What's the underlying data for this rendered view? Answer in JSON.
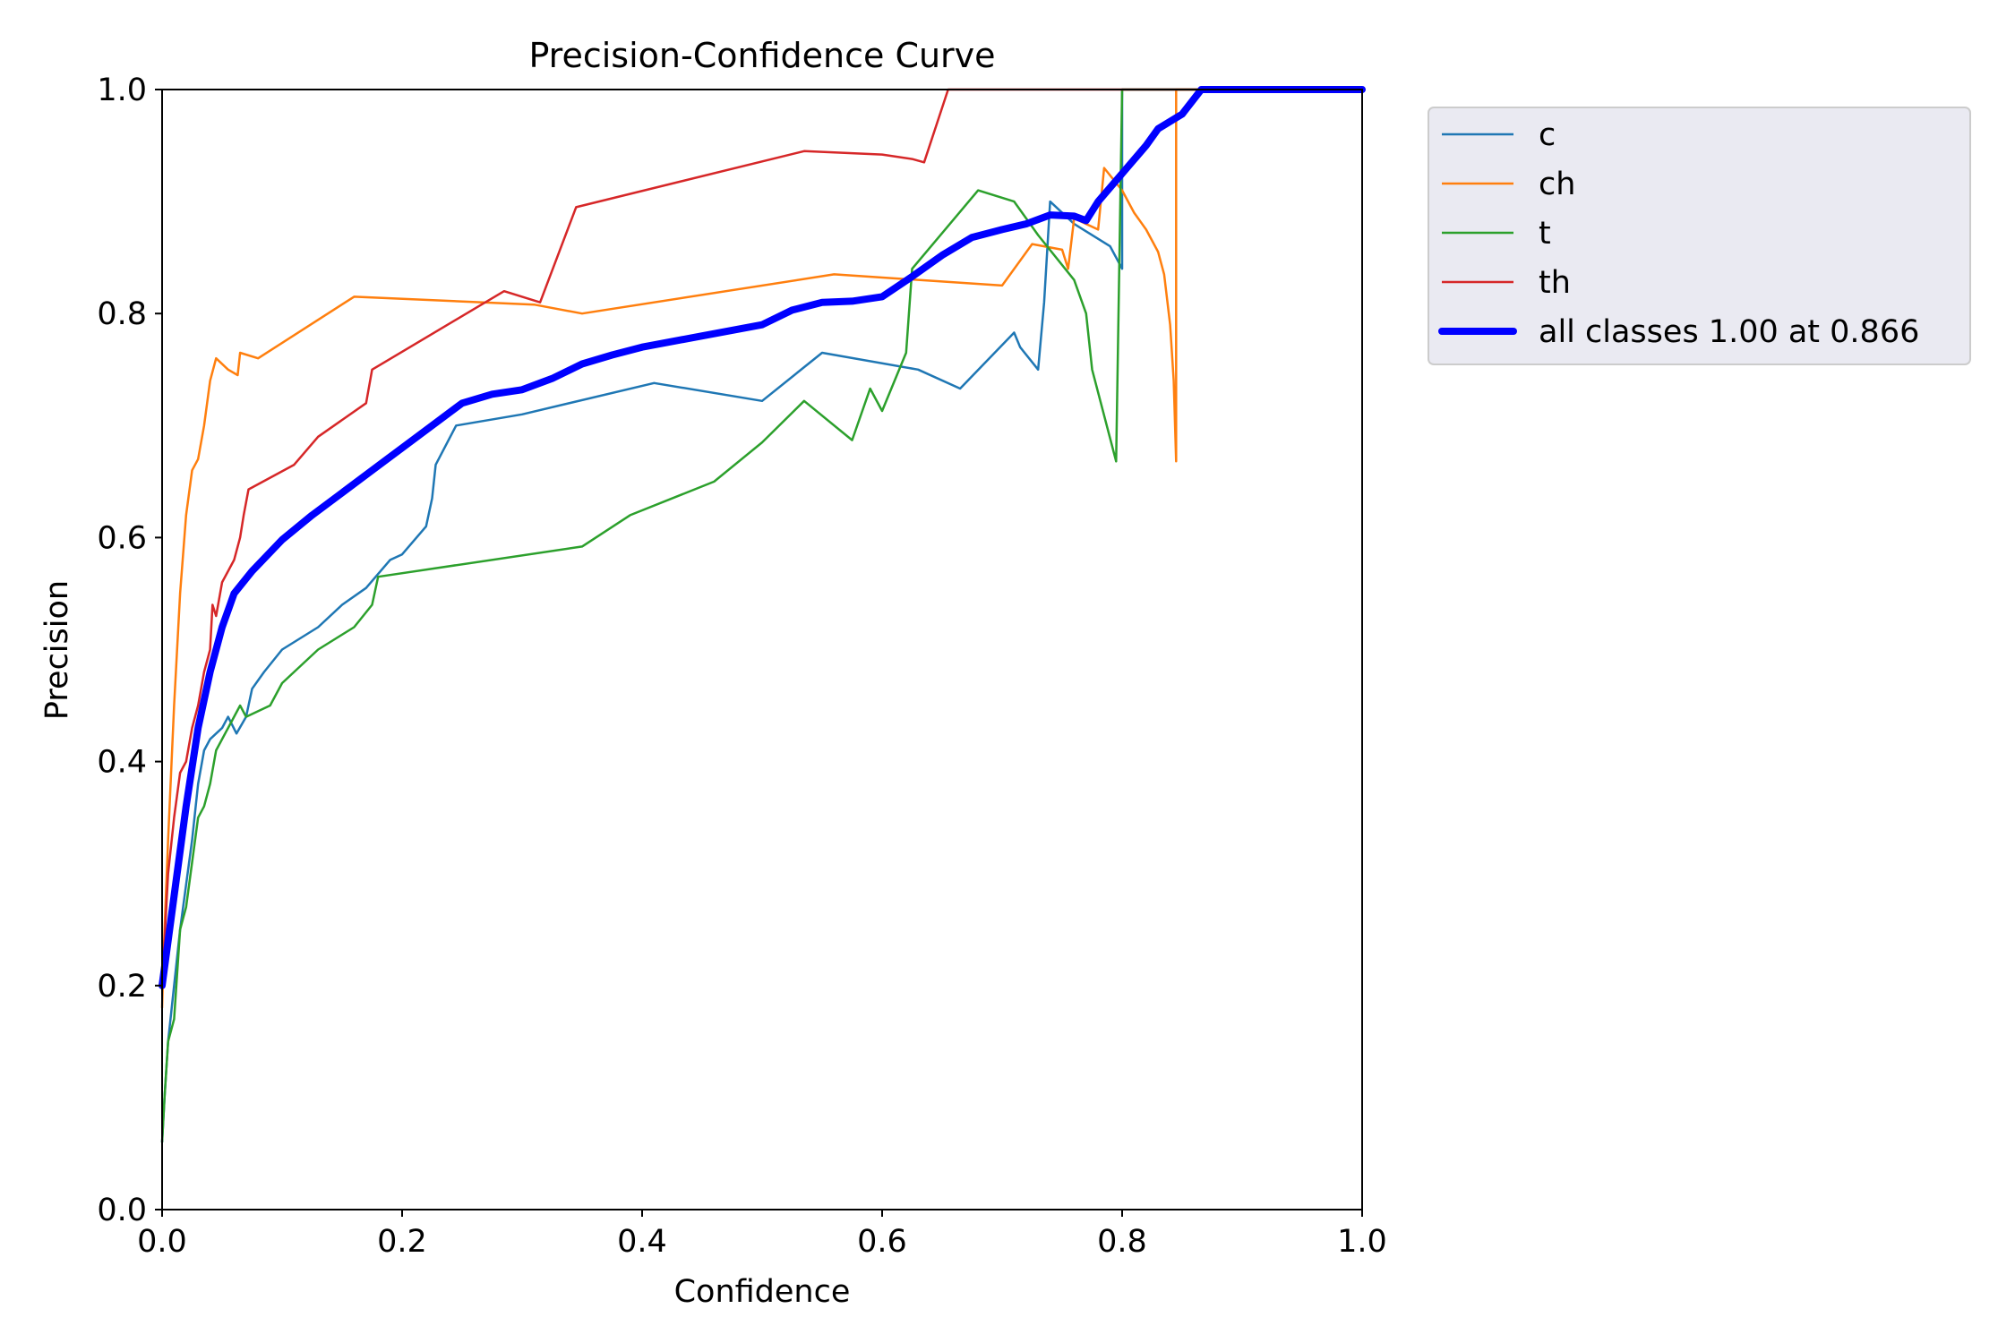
{
  "chart_data": {
    "type": "line",
    "title": "Precision-Confidence Curve",
    "xlabel": "Confidence",
    "ylabel": "Precision",
    "xlim": [
      0,
      1
    ],
    "ylim": [
      0,
      1
    ],
    "x_ticks": [
      "0.0",
      "0.2",
      "0.4",
      "0.6",
      "0.8",
      "1.0"
    ],
    "y_ticks": [
      "0.0",
      "0.2",
      "0.4",
      "0.6",
      "0.8",
      "1.0"
    ],
    "grid": false,
    "legend_position": "outside-top-right",
    "series": [
      {
        "name": "c",
        "color": "#1f77b4",
        "width": "thin",
        "points": [
          [
            0.0,
            0.06
          ],
          [
            0.002,
            0.1
          ],
          [
            0.005,
            0.15
          ],
          [
            0.01,
            0.2
          ],
          [
            0.015,
            0.25
          ],
          [
            0.02,
            0.29
          ],
          [
            0.025,
            0.33
          ],
          [
            0.03,
            0.38
          ],
          [
            0.035,
            0.41
          ],
          [
            0.04,
            0.42
          ],
          [
            0.05,
            0.43
          ],
          [
            0.055,
            0.44
          ],
          [
            0.062,
            0.425
          ],
          [
            0.07,
            0.44
          ],
          [
            0.075,
            0.465
          ],
          [
            0.085,
            0.48
          ],
          [
            0.1,
            0.5
          ],
          [
            0.13,
            0.52
          ],
          [
            0.15,
            0.54
          ],
          [
            0.17,
            0.555
          ],
          [
            0.19,
            0.58
          ],
          [
            0.2,
            0.585
          ],
          [
            0.22,
            0.61
          ],
          [
            0.225,
            0.635
          ],
          [
            0.228,
            0.665
          ],
          [
            0.245,
            0.7
          ],
          [
            0.3,
            0.71
          ],
          [
            0.41,
            0.738
          ],
          [
            0.5,
            0.722
          ],
          [
            0.55,
            0.765
          ],
          [
            0.63,
            0.75
          ],
          [
            0.665,
            0.733
          ],
          [
            0.71,
            0.783
          ],
          [
            0.715,
            0.77
          ],
          [
            0.73,
            0.75
          ],
          [
            0.735,
            0.81
          ],
          [
            0.74,
            0.9
          ],
          [
            0.76,
            0.88
          ],
          [
            0.79,
            0.86
          ],
          [
            0.8,
            0.84
          ],
          [
            0.8,
            1.0
          ],
          [
            1.0,
            1.0
          ]
        ]
      },
      {
        "name": "ch",
        "color": "#ff7f0e",
        "width": "thin",
        "points": [
          [
            0.0,
            0.18
          ],
          [
            0.002,
            0.25
          ],
          [
            0.005,
            0.33
          ],
          [
            0.01,
            0.45
          ],
          [
            0.015,
            0.55
          ],
          [
            0.02,
            0.62
          ],
          [
            0.025,
            0.66
          ],
          [
            0.03,
            0.67
          ],
          [
            0.035,
            0.7
          ],
          [
            0.04,
            0.74
          ],
          [
            0.045,
            0.76
          ],
          [
            0.055,
            0.75
          ],
          [
            0.063,
            0.745
          ],
          [
            0.065,
            0.765
          ],
          [
            0.08,
            0.76
          ],
          [
            0.16,
            0.815
          ],
          [
            0.31,
            0.808
          ],
          [
            0.35,
            0.8
          ],
          [
            0.56,
            0.835
          ],
          [
            0.7,
            0.825
          ],
          [
            0.725,
            0.862
          ],
          [
            0.75,
            0.857
          ],
          [
            0.755,
            0.84
          ],
          [
            0.76,
            0.885
          ],
          [
            0.78,
            0.875
          ],
          [
            0.785,
            0.93
          ],
          [
            0.8,
            0.91
          ],
          [
            0.81,
            0.89
          ],
          [
            0.82,
            0.875
          ],
          [
            0.83,
            0.855
          ],
          [
            0.835,
            0.835
          ],
          [
            0.84,
            0.79
          ],
          [
            0.843,
            0.74
          ],
          [
            0.845,
            0.668
          ],
          [
            0.845,
            1.0
          ],
          [
            1.0,
            1.0
          ]
        ]
      },
      {
        "name": "t",
        "color": "#2ca02c",
        "width": "thin",
        "points": [
          [
            0.0,
            0.06
          ],
          [
            0.002,
            0.1
          ],
          [
            0.005,
            0.15
          ],
          [
            0.01,
            0.17
          ],
          [
            0.015,
            0.25
          ],
          [
            0.02,
            0.27
          ],
          [
            0.025,
            0.31
          ],
          [
            0.03,
            0.35
          ],
          [
            0.035,
            0.36
          ],
          [
            0.04,
            0.38
          ],
          [
            0.045,
            0.41
          ],
          [
            0.055,
            0.43
          ],
          [
            0.065,
            0.45
          ],
          [
            0.07,
            0.44
          ],
          [
            0.09,
            0.45
          ],
          [
            0.1,
            0.47
          ],
          [
            0.11,
            0.48
          ],
          [
            0.13,
            0.5
          ],
          [
            0.16,
            0.52
          ],
          [
            0.175,
            0.54
          ],
          [
            0.18,
            0.565
          ],
          [
            0.35,
            0.592
          ],
          [
            0.39,
            0.62
          ],
          [
            0.46,
            0.65
          ],
          [
            0.5,
            0.685
          ],
          [
            0.535,
            0.722
          ],
          [
            0.575,
            0.687
          ],
          [
            0.59,
            0.733
          ],
          [
            0.6,
            0.713
          ],
          [
            0.62,
            0.765
          ],
          [
            0.625,
            0.84
          ],
          [
            0.68,
            0.91
          ],
          [
            0.71,
            0.9
          ],
          [
            0.73,
            0.87
          ],
          [
            0.76,
            0.83
          ],
          [
            0.77,
            0.8
          ],
          [
            0.775,
            0.75
          ],
          [
            0.795,
            0.668
          ],
          [
            0.8,
            1.0
          ],
          [
            1.0,
            1.0
          ]
        ]
      },
      {
        "name": "th",
        "color": "#d62728",
        "width": "thin",
        "points": [
          [
            0.0,
            0.2
          ],
          [
            0.005,
            0.3
          ],
          [
            0.01,
            0.35
          ],
          [
            0.015,
            0.39
          ],
          [
            0.02,
            0.4
          ],
          [
            0.025,
            0.43
          ],
          [
            0.03,
            0.45
          ],
          [
            0.035,
            0.48
          ],
          [
            0.04,
            0.5
          ],
          [
            0.042,
            0.54
          ],
          [
            0.045,
            0.53
          ],
          [
            0.05,
            0.56
          ],
          [
            0.06,
            0.58
          ],
          [
            0.065,
            0.6
          ],
          [
            0.068,
            0.62
          ],
          [
            0.072,
            0.643
          ],
          [
            0.11,
            0.665
          ],
          [
            0.13,
            0.69
          ],
          [
            0.17,
            0.72
          ],
          [
            0.175,
            0.75
          ],
          [
            0.285,
            0.82
          ],
          [
            0.315,
            0.81
          ],
          [
            0.345,
            0.895
          ],
          [
            0.535,
            0.945
          ],
          [
            0.6,
            0.942
          ],
          [
            0.625,
            0.938
          ],
          [
            0.635,
            0.935
          ],
          [
            0.655,
            1.0
          ],
          [
            1.0,
            1.0
          ]
        ]
      },
      {
        "name": "all classes 1.00 at 0.866",
        "color": "#0000ff",
        "width": "thick",
        "points": [
          [
            0.0,
            0.2
          ],
          [
            0.01,
            0.28
          ],
          [
            0.02,
            0.36
          ],
          [
            0.03,
            0.43
          ],
          [
            0.04,
            0.48
          ],
          [
            0.05,
            0.52
          ],
          [
            0.06,
            0.55
          ],
          [
            0.075,
            0.57
          ],
          [
            0.1,
            0.598
          ],
          [
            0.125,
            0.62
          ],
          [
            0.15,
            0.64
          ],
          [
            0.175,
            0.66
          ],
          [
            0.2,
            0.68
          ],
          [
            0.225,
            0.7
          ],
          [
            0.25,
            0.72
          ],
          [
            0.275,
            0.728
          ],
          [
            0.3,
            0.732
          ],
          [
            0.325,
            0.742
          ],
          [
            0.35,
            0.755
          ],
          [
            0.375,
            0.763
          ],
          [
            0.4,
            0.77
          ],
          [
            0.45,
            0.78
          ],
          [
            0.5,
            0.79
          ],
          [
            0.525,
            0.803
          ],
          [
            0.55,
            0.81
          ],
          [
            0.575,
            0.811
          ],
          [
            0.6,
            0.815
          ],
          [
            0.625,
            0.833
          ],
          [
            0.65,
            0.852
          ],
          [
            0.675,
            0.868
          ],
          [
            0.7,
            0.875
          ],
          [
            0.72,
            0.88
          ],
          [
            0.74,
            0.888
          ],
          [
            0.76,
            0.887
          ],
          [
            0.77,
            0.883
          ],
          [
            0.78,
            0.9
          ],
          [
            0.8,
            0.925
          ],
          [
            0.82,
            0.95
          ],
          [
            0.83,
            0.965
          ],
          [
            0.85,
            0.978
          ],
          [
            0.866,
            1.0
          ],
          [
            1.0,
            1.0
          ]
        ]
      }
    ]
  }
}
